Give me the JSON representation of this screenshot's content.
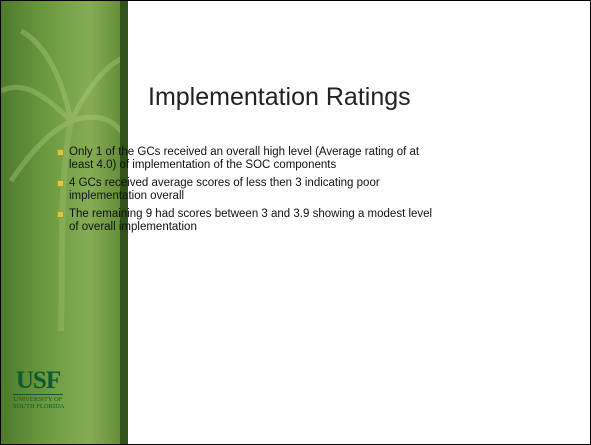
{
  "slide": {
    "title": "Implementation Ratings",
    "bullets": [
      {
        "lines": [
          "Only 1 of the GCs received an overall high level (Average rating of at",
          "least 4.0) of implementation of the SOC components"
        ]
      },
      {
        "lines": [
          "4 GCs received average scores of less then 3 indicating poor",
          "implementation overall"
        ]
      },
      {
        "lines": [
          "The remaining 9 had scores between 3 and 3.9 showing a modest level",
          "of overall implementation"
        ]
      }
    ],
    "logo": {
      "mark": "USF",
      "lines": [
        "UNIVERSITY OF",
        "SOUTH FLORIDA"
      ]
    }
  }
}
